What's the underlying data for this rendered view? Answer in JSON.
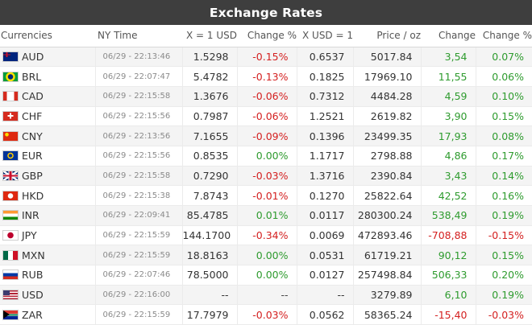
{
  "title": "Exchange Rates",
  "columns": {
    "currencies": "Currencies",
    "ny_time": "NY Time",
    "x_eq_1_usd": "X = 1 USD",
    "change_pct_1": "Change %",
    "x_usd_eq_1": "X USD = 1",
    "price_oz": "Price / oz",
    "change": "Change",
    "change_pct_2": "Change %"
  },
  "colors": {
    "positive": "#2e9b2e",
    "negative": "#d42020",
    "header_bg": "#3e3e3e"
  },
  "rows": [
    {
      "code": "AUD",
      "flag": "australia-flag-icon",
      "time": "06/29 - 22:13:46",
      "x1": "1.5298",
      "chg1": "-0.15%",
      "chg1_sign": "neg",
      "xusd": "0.6537",
      "price": "5017.84",
      "chg": "3,54",
      "chg_sign": "pos",
      "chg2": "0.07%",
      "chg2_sign": "pos"
    },
    {
      "code": "BRL",
      "flag": "brazil-flag-icon",
      "time": "06/29 - 22:07:47",
      "x1": "5.4782",
      "chg1": "-0.13%",
      "chg1_sign": "neg",
      "xusd": "0.1825",
      "price": "17969.10",
      "chg": "11,55",
      "chg_sign": "pos",
      "chg2": "0.06%",
      "chg2_sign": "pos"
    },
    {
      "code": "CAD",
      "flag": "canada-flag-icon",
      "time": "06/29 - 22:15:58",
      "x1": "1.3676",
      "chg1": "-0.06%",
      "chg1_sign": "neg",
      "xusd": "0.7312",
      "price": "4484.28",
      "chg": "4,59",
      "chg_sign": "pos",
      "chg2": "0.10%",
      "chg2_sign": "pos"
    },
    {
      "code": "CHF",
      "flag": "switzerland-flag-icon",
      "time": "06/29 - 22:15:56",
      "x1": "0.7987",
      "chg1": "-0.06%",
      "chg1_sign": "neg",
      "xusd": "1.2521",
      "price": "2619.82",
      "chg": "3,90",
      "chg_sign": "pos",
      "chg2": "0.15%",
      "chg2_sign": "pos"
    },
    {
      "code": "CNY",
      "flag": "china-flag-icon",
      "time": "06/29 - 22:13:56",
      "x1": "7.1655",
      "chg1": "-0.09%",
      "chg1_sign": "neg",
      "xusd": "0.1396",
      "price": "23499.35",
      "chg": "17,93",
      "chg_sign": "pos",
      "chg2": "0.08%",
      "chg2_sign": "pos"
    },
    {
      "code": "EUR",
      "flag": "eu-flag-icon",
      "time": "06/29 - 22:15:56",
      "x1": "0.8535",
      "chg1": "0.00%",
      "chg1_sign": "zero",
      "xusd": "1.1717",
      "price": "2798.88",
      "chg": "4,86",
      "chg_sign": "pos",
      "chg2": "0.17%",
      "chg2_sign": "pos"
    },
    {
      "code": "GBP",
      "flag": "uk-flag-icon",
      "time": "06/29 - 22:15:58",
      "x1": "0.7290",
      "chg1": "-0.03%",
      "chg1_sign": "neg",
      "xusd": "1.3716",
      "price": "2390.84",
      "chg": "3,43",
      "chg_sign": "pos",
      "chg2": "0.14%",
      "chg2_sign": "pos"
    },
    {
      "code": "HKD",
      "flag": "hong-kong-flag-icon",
      "time": "06/29 - 22:15:38",
      "x1": "7.8743",
      "chg1": "-0.01%",
      "chg1_sign": "neg",
      "xusd": "0.1270",
      "price": "25822.64",
      "chg": "42,52",
      "chg_sign": "pos",
      "chg2": "0.16%",
      "chg2_sign": "pos"
    },
    {
      "code": "INR",
      "flag": "india-flag-icon",
      "time": "06/29 - 22:09:41",
      "x1": "85.4785",
      "chg1": "0.01%",
      "chg1_sign": "pos",
      "xusd": "0.0117",
      "price": "280300.24",
      "chg": "538,49",
      "chg_sign": "pos",
      "chg2": "0.19%",
      "chg2_sign": "pos"
    },
    {
      "code": "JPY",
      "flag": "japan-flag-icon",
      "time": "06/29 - 22:15:59",
      "x1": "144.1700",
      "chg1": "-0.34%",
      "chg1_sign": "neg",
      "xusd": "0.0069",
      "price": "472893.46",
      "chg": "-708,88",
      "chg_sign": "neg",
      "chg2": "-0.15%",
      "chg2_sign": "neg"
    },
    {
      "code": "MXN",
      "flag": "mexico-flag-icon",
      "time": "06/29 - 22:15:59",
      "x1": "18.8163",
      "chg1": "0.00%",
      "chg1_sign": "zero",
      "xusd": "0.0531",
      "price": "61719.21",
      "chg": "90,12",
      "chg_sign": "pos",
      "chg2": "0.15%",
      "chg2_sign": "pos"
    },
    {
      "code": "RUB",
      "flag": "russia-flag-icon",
      "time": "06/29 - 22:07:46",
      "x1": "78.5000",
      "chg1": "0.00%",
      "chg1_sign": "zero",
      "xusd": "0.0127",
      "price": "257498.84",
      "chg": "506,33",
      "chg_sign": "pos",
      "chg2": "0.20%",
      "chg2_sign": "pos"
    },
    {
      "code": "USD",
      "flag": "usa-flag-icon",
      "time": "06/29 - 22:16:00",
      "x1": "--",
      "chg1": "--",
      "chg1_sign": "na",
      "xusd": "--",
      "price": "3279.89",
      "chg": "6,10",
      "chg_sign": "pos",
      "chg2": "0.19%",
      "chg2_sign": "pos"
    },
    {
      "code": "ZAR",
      "flag": "south-africa-flag-icon",
      "time": "06/29 - 22:15:59",
      "x1": "17.7979",
      "chg1": "-0.03%",
      "chg1_sign": "neg",
      "xusd": "0.0562",
      "price": "58365.24",
      "chg": "-15,40",
      "chg_sign": "neg",
      "chg2": "-0.03%",
      "chg2_sign": "neg"
    }
  ]
}
